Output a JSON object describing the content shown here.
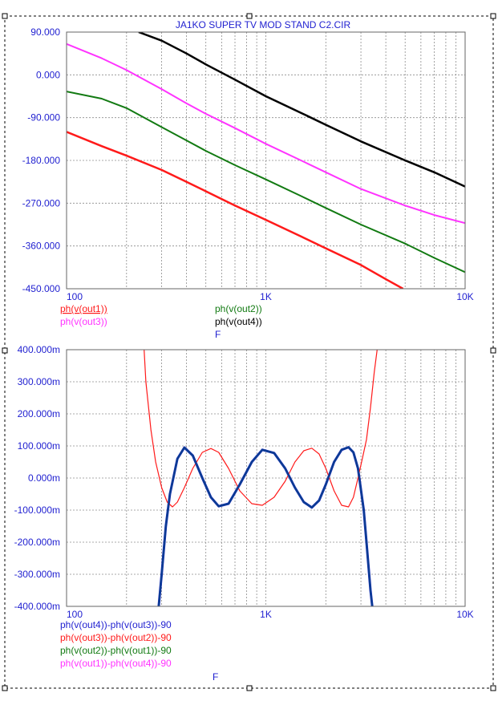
{
  "title": "JA1KO SUPER TV MOD STAND C2.CIR",
  "colors": {
    "text_blue": "#1f1fd0",
    "grid": "#8c8c8c",
    "red": "#ff1a1a",
    "magenta": "#ff33ff",
    "green": "#127a12",
    "black": "#000000",
    "navy": "#0b3d91"
  },
  "chart_data": [
    {
      "type": "line",
      "x_scale": "log",
      "xlim": [
        100,
        10000
      ],
      "ylim": [
        -450,
        90
      ],
      "grid": true,
      "x_ticks": [
        {
          "v": 100,
          "label": "100"
        },
        {
          "v": 1000,
          "label": "1K"
        },
        {
          "v": 10000,
          "label": "10K"
        }
      ],
      "y_ticks": [
        {
          "v": 90,
          "label": "90.000"
        },
        {
          "v": 0,
          "label": "0.000"
        },
        {
          "v": -90,
          "label": "-90.000"
        },
        {
          "v": -180,
          "label": "-180.000"
        },
        {
          "v": -270,
          "label": "-270.000"
        },
        {
          "v": -360,
          "label": "-360.000"
        },
        {
          "v": -450,
          "label": "-450.000"
        }
      ],
      "xlabel": "F",
      "series": [
        {
          "name": "ph(v(out1))",
          "color": "#ff1a1a",
          "x": [
            100,
            150,
            200,
            300,
            400,
            500,
            700,
            1000,
            1500,
            2000,
            3000,
            4000,
            4880
          ],
          "y": [
            -120,
            -150,
            -170,
            -200,
            -225,
            -245,
            -275,
            -305,
            -340,
            -365,
            -400,
            -430,
            -450
          ]
        },
        {
          "name": "ph(v(out2))",
          "color": "#127a12",
          "x": [
            100,
            150,
            200,
            300,
            400,
            500,
            700,
            1000,
            1500,
            2000,
            3000,
            5000,
            7000,
            10000
          ],
          "y": [
            -35,
            -50,
            -70,
            -110,
            -138,
            -160,
            -190,
            -220,
            -255,
            -280,
            -315,
            -355,
            -385,
            -415
          ]
        },
        {
          "name": "ph(v(out3))",
          "color": "#ff33ff",
          "x": [
            100,
            150,
            200,
            300,
            400,
            500,
            700,
            1000,
            1500,
            2000,
            3000,
            5000,
            7000,
            10000
          ],
          "y": [
            65,
            35,
            10,
            -30,
            -60,
            -82,
            -112,
            -145,
            -180,
            -205,
            -240,
            -275,
            -295,
            -312
          ]
        },
        {
          "name": "ph(v(out4))",
          "color": "#000000",
          "x": [
            230,
            300,
            400,
            500,
            700,
            1000,
            1500,
            2000,
            3000,
            5000,
            7000,
            10000
          ],
          "y": [
            90,
            72,
            45,
            22,
            -10,
            -45,
            -80,
            -105,
            -140,
            -180,
            -205,
            -235
          ]
        }
      ]
    },
    {
      "type": "line",
      "x_scale": "log",
      "xlim": [
        100,
        10000
      ],
      "ylim": [
        -0.4,
        0.4
      ],
      "grid": true,
      "x_ticks": [
        {
          "v": 100,
          "label": "100"
        },
        {
          "v": 1000,
          "label": "1K"
        },
        {
          "v": 10000,
          "label": "10K"
        }
      ],
      "y_ticks": [
        {
          "v": 0.4,
          "label": "400.000m"
        },
        {
          "v": 0.3,
          "label": "300.000m"
        },
        {
          "v": 0.2,
          "label": "200.000m"
        },
        {
          "v": 0.1,
          "label": "100.000m"
        },
        {
          "v": 0,
          "label": "0.000m"
        },
        {
          "v": -0.1,
          "label": "-100.000m"
        },
        {
          "v": -0.2,
          "label": "-200.000m"
        },
        {
          "v": -0.3,
          "label": "-300.000m"
        },
        {
          "v": -0.4,
          "label": "-400.000m"
        }
      ],
      "xlabel": "F",
      "series": [
        {
          "name": "ph(v(out4))-ph(v(out3))-90",
          "color": "#1f1fd0",
          "x": [
            290,
            300,
            315,
            330,
            360,
            390,
            430,
            480,
            530,
            580,
            650,
            740,
            850,
            960,
            1100,
            1250,
            1400,
            1550,
            1700,
            1850,
            2000,
            2200,
            2400,
            2600,
            2750,
            2900,
            3100,
            3200,
            3350,
            3420
          ],
          "y": [
            -0.4,
            -0.3,
            -0.15,
            -0.05,
            0.06,
            0.095,
            0.07,
            0.0,
            -0.06,
            -0.088,
            -0.08,
            -0.02,
            0.05,
            0.088,
            0.078,
            0.03,
            -0.03,
            -0.075,
            -0.092,
            -0.07,
            -0.02,
            0.05,
            0.088,
            0.096,
            0.08,
            0.03,
            -0.1,
            -0.2,
            -0.35,
            -0.4
          ]
        },
        {
          "name": "ph(v(out3))-ph(v(out2))-90",
          "color": "#ff1a1a",
          "x": [
            245,
            250,
            265,
            280,
            300,
            320,
            340,
            360,
            390,
            430,
            480,
            530,
            580,
            650,
            740,
            850,
            960,
            1100,
            1250,
            1400,
            1550,
            1700,
            1850,
            2000,
            2200,
            2400,
            2600,
            2750,
            2900,
            3050,
            3200,
            3350,
            3500,
            3620
          ],
          "y": [
            0.4,
            0.3,
            0.15,
            0.05,
            -0.03,
            -0.075,
            -0.09,
            -0.075,
            -0.03,
            0.03,
            0.08,
            0.092,
            0.08,
            0.03,
            -0.04,
            -0.08,
            -0.085,
            -0.06,
            -0.01,
            0.05,
            0.085,
            0.093,
            0.075,
            0.03,
            -0.04,
            -0.085,
            -0.09,
            -0.06,
            0.0,
            0.06,
            0.12,
            0.22,
            0.33,
            0.4
          ]
        },
        {
          "name": "ph(v(out2))-ph(v(out1))-90",
          "color": "#127a12",
          "x": [
            290,
            300,
            315,
            330,
            360,
            390,
            430,
            480,
            530,
            580,
            650,
            740,
            850,
            960,
            1100,
            1250,
            1400,
            1550,
            1700,
            1850,
            2000,
            2200,
            2400,
            2600,
            2750,
            2900,
            3100,
            3200,
            3350,
            3420
          ],
          "y": [
            -0.4,
            -0.3,
            -0.15,
            -0.05,
            0.06,
            0.095,
            0.07,
            0.0,
            -0.06,
            -0.088,
            -0.08,
            -0.02,
            0.05,
            0.088,
            0.078,
            0.03,
            -0.03,
            -0.075,
            -0.092,
            -0.07,
            -0.02,
            0.05,
            0.088,
            0.096,
            0.08,
            0.03,
            -0.1,
            -0.2,
            -0.35,
            -0.4
          ]
        },
        {
          "name": "ph(v(out1))-ph(v(out4))-90",
          "color": "#ff33ff",
          "x": [],
          "y": []
        }
      ]
    }
  ]
}
